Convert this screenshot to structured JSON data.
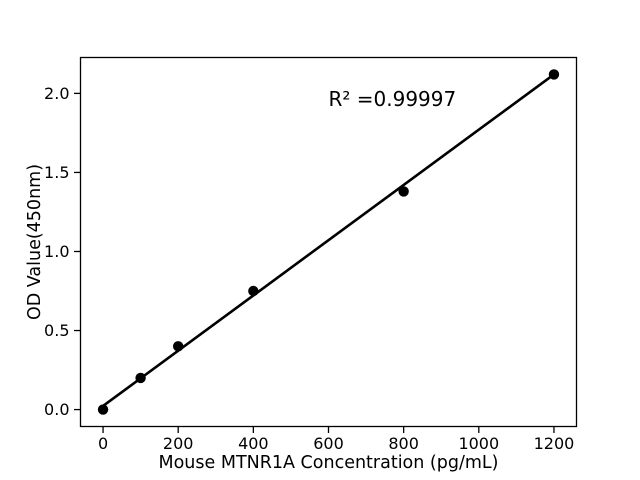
{
  "figure": {
    "background": "#ffffff"
  },
  "chart_data": {
    "type": "scatter",
    "title": "",
    "xlabel": "Mouse MTNR1A Concentration (pg/mL)",
    "ylabel": "OD Value(450nm)",
    "annotation": {
      "text": "R² =0.99997",
      "x": 600,
      "y": 1.92
    },
    "series": [
      {
        "name": "standard-points",
        "type": "scatter",
        "marker": "circle",
        "color": "#000000",
        "x": [
          0,
          100,
          200,
          400,
          800,
          1200
        ],
        "y": [
          0.0,
          0.2,
          0.4,
          0.75,
          1.38,
          2.12
        ]
      },
      {
        "name": "linear-fit",
        "type": "line",
        "color": "#000000",
        "x": [
          0,
          1200
        ],
        "y": [
          0.023,
          2.12
        ]
      }
    ],
    "x_ticks": [
      0,
      200,
      400,
      600,
      800,
      1000,
      1200
    ],
    "x_tick_labels": [
      "0",
      "200",
      "400",
      "600",
      "800",
      "1000",
      "1200"
    ],
    "y_ticks": [
      0.0,
      0.5,
      1.0,
      1.5,
      2.0
    ],
    "y_tick_labels": [
      "0.0",
      "0.5",
      "1.0",
      "1.5",
      "2.0"
    ],
    "xlim": [
      -60,
      1260
    ],
    "ylim": [
      -0.107,
      2.227
    ],
    "grid": false,
    "legend": null,
    "axis_color": "#000000",
    "text_color": "#000000",
    "background": "#ffffff"
  }
}
